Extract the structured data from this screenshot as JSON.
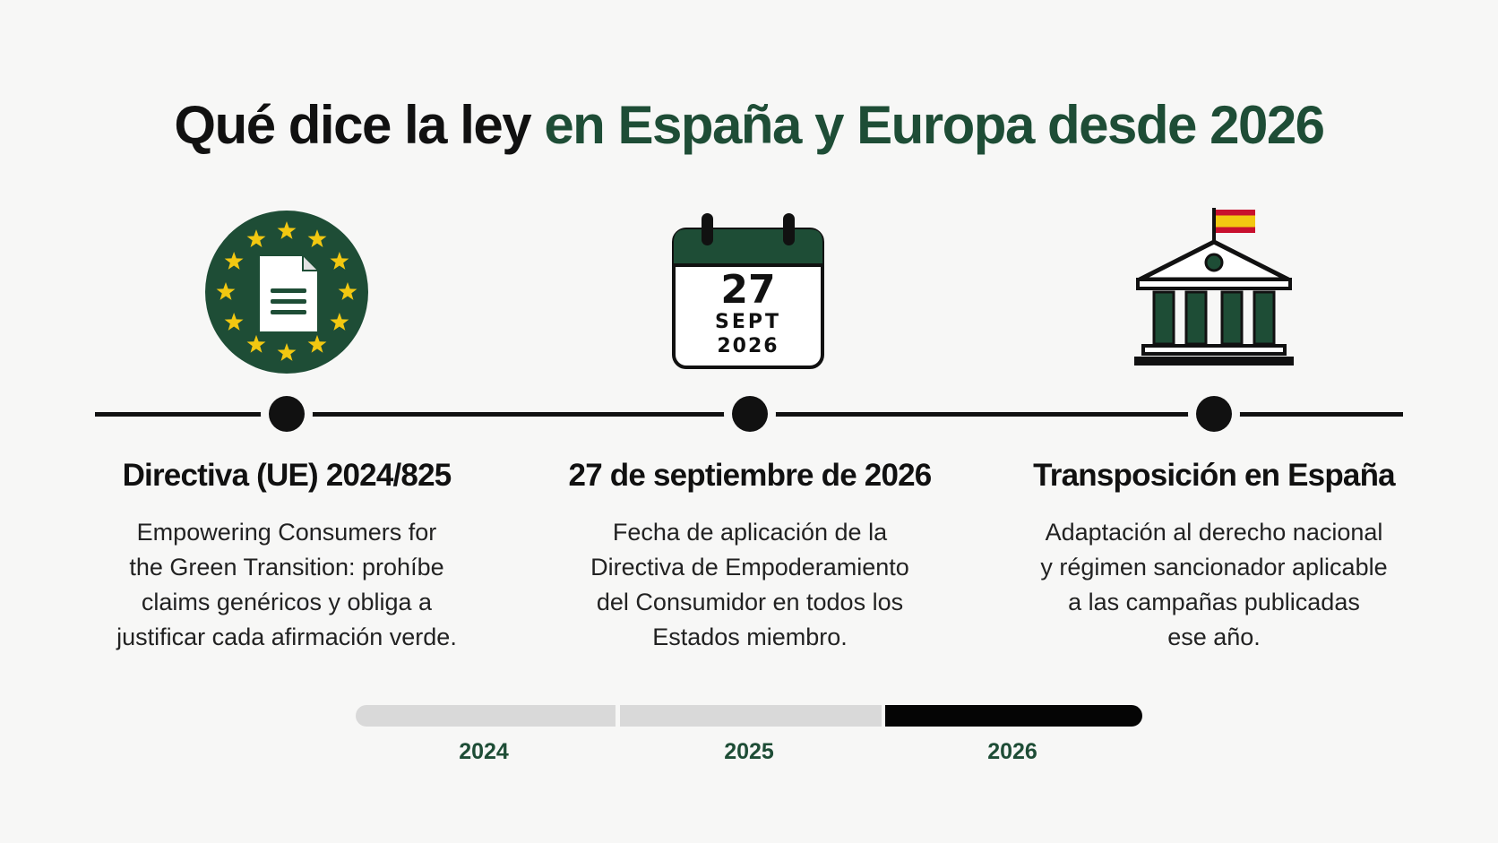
{
  "title": {
    "part1": "Qué dice la ley",
    "part2": "en España y Europa desde 2026"
  },
  "colors": {
    "accent_green": "#1e4d36",
    "text_dark": "#111111",
    "star_yellow": "#f2c811",
    "bar_inactive": "#d9d9d9",
    "bar_active": "#050505"
  },
  "milestones": [
    {
      "icon": "eu-document-icon",
      "title": "Directiva (UE) 2024/825",
      "lines": [
        "Empowering Consumers for",
        "the Green Transition: prohíbe",
        "claims genéricos y obliga a",
        "justificar cada afirmación verde."
      ]
    },
    {
      "icon": "calendar-icon",
      "calendar": {
        "day": "27",
        "month": "SEPT",
        "year": "2026"
      },
      "title": "27 de septiembre de 2026",
      "lines": [
        "Fecha de aplicación de la",
        "Directiva de Empoderamiento",
        "del Consumidor en todos los",
        "Estados miembro."
      ]
    },
    {
      "icon": "government-building-icon",
      "title": "Transposición en España",
      "lines": [
        "Adaptación al derecho nacional",
        "y régimen sancionador aplicable",
        "a las campañas publicadas",
        "ese año."
      ]
    }
  ],
  "years": [
    {
      "label": "2024",
      "active": false
    },
    {
      "label": "2025",
      "active": false
    },
    {
      "label": "2026",
      "active": true
    }
  ]
}
